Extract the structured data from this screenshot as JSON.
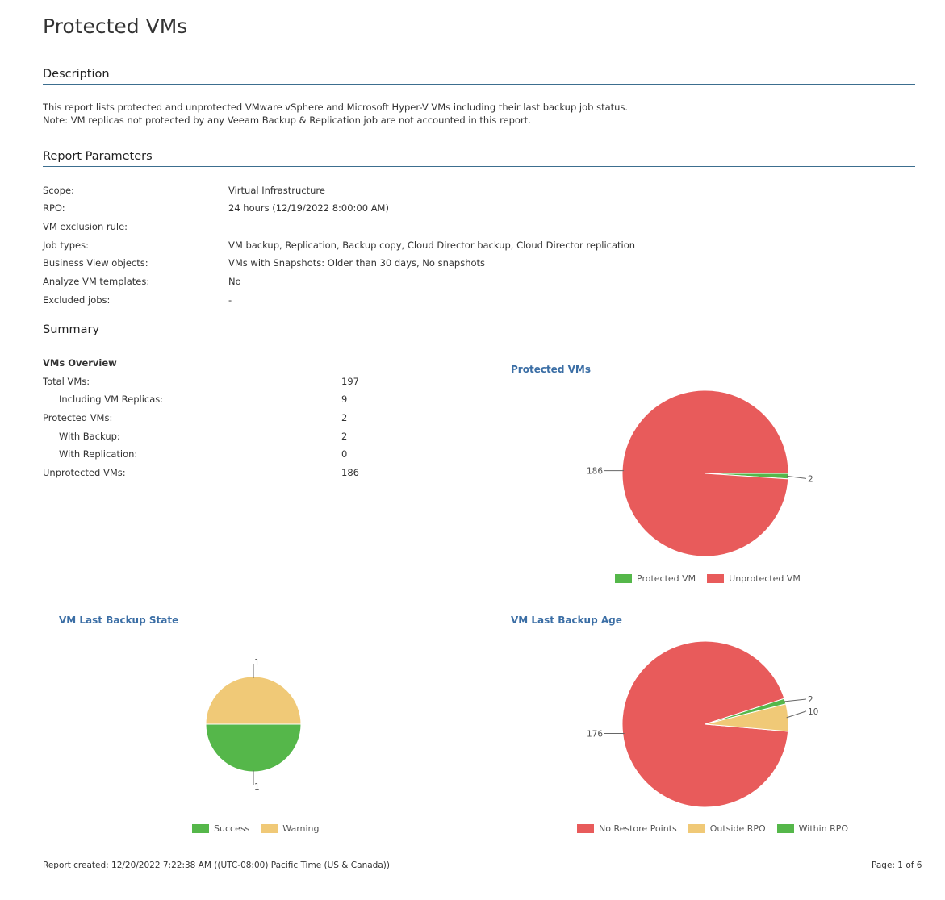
{
  "page": {
    "title": "Protected VMs"
  },
  "description": {
    "heading": "Description",
    "line1": "This report lists protected and unprotected VMware vSphere and Microsoft Hyper-V VMs including their last backup job status.",
    "line2": "Note: VM replicas not protected by any Veeam Backup & Replication job are not accounted in this report."
  },
  "parameters": {
    "heading": "Report Parameters",
    "rows": [
      {
        "label": "Scope:",
        "value": "Virtual Infrastructure"
      },
      {
        "label": "RPO:",
        "value": "24 hours (12/19/2022 8:00:00 AM)"
      },
      {
        "label": "VM exclusion rule:",
        "value": ""
      },
      {
        "label": "Job types:",
        "value": "VM backup, Replication, Backup copy, Cloud Director backup, Cloud Director replication"
      },
      {
        "label": "Business View objects:",
        "value": "VMs with Snapshots: Older than 30 days, No snapshots"
      },
      {
        "label": "Analyze VM templates:",
        "value": "No"
      },
      {
        "label": "Excluded jobs:",
        "value": "-"
      }
    ]
  },
  "summary": {
    "heading": "Summary",
    "overview_title": "VMs Overview",
    "rows": [
      {
        "label": "Total VMs:",
        "value": "197"
      },
      {
        "label": "Including VM Replicas:",
        "value": "9"
      },
      {
        "label": "Protected VMs:",
        "value": "2"
      },
      {
        "label": "With Backup:",
        "value": "2"
      },
      {
        "label": "With Replication:",
        "value": "0"
      },
      {
        "label": "Unprotected VMs:",
        "value": "186"
      }
    ]
  },
  "colors": {
    "red": "#e85b5b",
    "green": "#55b74a",
    "yellow": "#f0c977",
    "title_blue": "#3b6ea5",
    "rule": "#3c6e8f"
  },
  "chart_data": [
    {
      "type": "pie",
      "title": "Protected VMs",
      "series": [
        {
          "name": "Protected VM",
          "value": 2,
          "color": "#55b74a"
        },
        {
          "name": "Unprotected VM",
          "value": 186,
          "color": "#e85b5b"
        }
      ],
      "labels": [
        "2",
        "186"
      ],
      "legend_position": "bottom"
    },
    {
      "type": "pie",
      "title": "VM Last Backup State",
      "series": [
        {
          "name": "Success",
          "value": 1,
          "color": "#55b74a"
        },
        {
          "name": "Warning",
          "value": 1,
          "color": "#f0c977"
        }
      ],
      "labels": [
        "1",
        "1"
      ],
      "legend_position": "bottom"
    },
    {
      "type": "pie",
      "title": "VM Last Backup Age",
      "series": [
        {
          "name": "No Restore Points",
          "value": 176,
          "color": "#e85b5b"
        },
        {
          "name": "Outside RPO",
          "value": 10,
          "color": "#f0c977"
        },
        {
          "name": "Within RPO",
          "value": 2,
          "color": "#55b74a"
        }
      ],
      "labels": [
        "176",
        "10",
        "2"
      ],
      "legend_position": "bottom"
    }
  ],
  "footer": {
    "created": "Report created: 12/20/2022 7:22:38 AM ((UTC-08:00) Pacific Time (US & Canada))",
    "page": "Page: 1 of 6"
  }
}
